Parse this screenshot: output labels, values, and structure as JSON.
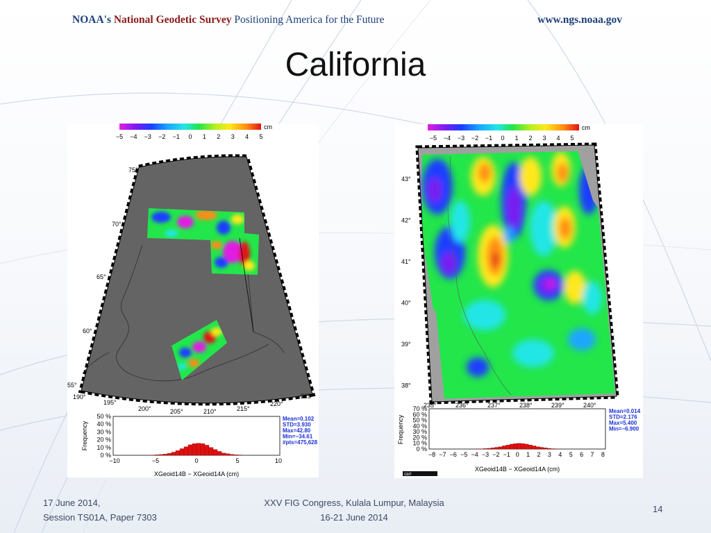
{
  "header": {
    "agency": "NOAA's",
    "survey_name": "National Geodetic Survey",
    "tagline": "Positioning America for the Future",
    "url": "www.ngs.noaa.gov"
  },
  "title": "California",
  "left_figure": {
    "colorbar_unit": "cm",
    "colorbar_ticks": [
      "−5",
      "−4",
      "−3",
      "−2",
      "−1",
      "0",
      "1",
      "2",
      "3",
      "4",
      "5"
    ],
    "lat_labels": [
      "75°",
      "70°",
      "65°",
      "60°",
      "55°"
    ],
    "lon_labels": [
      "190°",
      "195°",
      "200°",
      "205°",
      "210°",
      "215°",
      "220°",
      "225°"
    ],
    "hist_ylabel": "Frequency",
    "hist_yticks": [
      "50 %",
      "40 %",
      "30 %",
      "20 %",
      "10 %",
      "0 %"
    ],
    "hist_xticks": [
      "−10",
      "−5",
      "0",
      "5",
      "10"
    ],
    "hist_xlabel": "XGeoid14B − XGeoid14A (cm)",
    "stats": [
      "Mean=0.102",
      "STD=3.930",
      "Max=42.80",
      "Min=−34.61",
      "#pts=475,628"
    ],
    "hist_values": [
      0.3,
      0.6,
      1,
      1.5,
      2.5,
      4,
      6,
      8.5,
      11,
      13.5,
      15,
      15.5,
      15,
      13,
      10,
      7.5,
      5,
      3,
      2,
      1.2,
      0.7,
      0.4
    ]
  },
  "right_figure": {
    "colorbar_unit": "cm",
    "colorbar_ticks": [
      "−5",
      "−4",
      "−3",
      "−2",
      "−1",
      "0",
      "1",
      "2",
      "3",
      "4",
      "5"
    ],
    "lat_labels": [
      "43°",
      "42°",
      "41°",
      "40°",
      "39°",
      "38°"
    ],
    "lon_labels": [
      "235°",
      "236°",
      "237°",
      "238°",
      "239°",
      "240°"
    ],
    "hist_ylabel": "Frequency",
    "hist_yticks": [
      "70 %",
      "60 %",
      "50 %",
      "40 %",
      "30 %",
      "20 %",
      "10 %",
      "0 %"
    ],
    "hist_xticks": [
      "−8",
      "−7",
      "−6",
      "−5",
      "−4",
      "−3",
      "−2",
      "−1",
      "0",
      "1",
      "2",
      "3",
      "4",
      "5",
      "6",
      "7",
      "8"
    ],
    "hist_xlabel": "XGeoid14B − XGeoid14A (cm)",
    "stats": [
      "Mean=0.014",
      "STD=2.176",
      "Max=5.400",
      "Min=−6.900"
    ],
    "gmt_label": "GMT",
    "hist_values": [
      0.2,
      0.4,
      0.8,
      1.3,
      2,
      3,
      4,
      5.5,
      7,
      8.5,
      9.5,
      10,
      9.5,
      8.5,
      7,
      5.5,
      4,
      3,
      2,
      1.2,
      0.6,
      0.3
    ]
  },
  "footer": {
    "date": "17 June 2014,",
    "session": "Session TS01A, Paper 7303",
    "congress": "XXV FIG Congress, Kulala Lumpur, Malaysia",
    "congress_dates": "16-21 June 2014",
    "page": "14"
  },
  "colors": {
    "header_blue": "#1c3f7a",
    "header_red": "#8b1a1a",
    "map_gray": "#646464",
    "stat_blue": "#1a2fd6",
    "hist_red": "#e01010"
  }
}
